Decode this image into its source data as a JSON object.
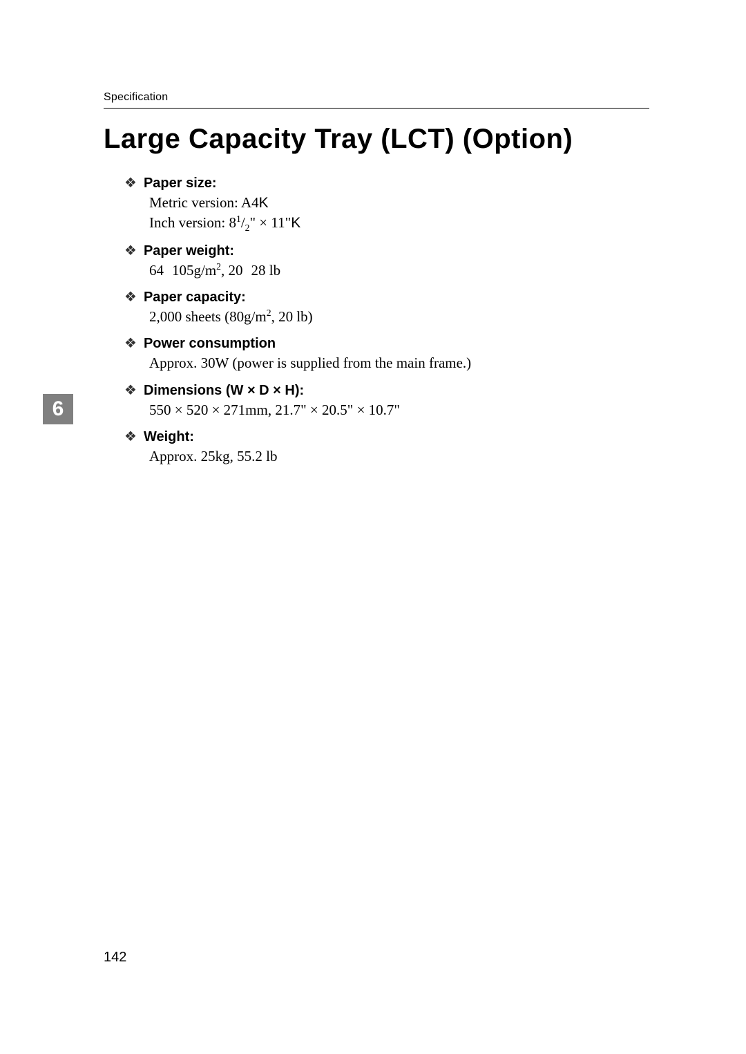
{
  "header": {
    "running_head": "Specification"
  },
  "title": "Large Capacity Tray (LCT) (Option)",
  "section_tab": "6",
  "page_number": "142",
  "bullet_glyph": "❖",
  "specs": {
    "paper_size": {
      "label": "Paper size:",
      "line1_prefix": "Metric version: A4",
      "line1_k": "K",
      "line2_prefix": "Inch version: 8",
      "line2_sup": "1",
      "line2_slash": "/",
      "line2_sub": "2",
      "line2_mid": "\" × 11\"",
      "line2_k": "K"
    },
    "paper_weight": {
      "label": "Paper weight:",
      "part1": "64",
      "dash1": " ",
      "part2": "105g/m",
      "sup": "2",
      "part3": ", 20",
      "dash2": " ",
      "part4": "28 lb"
    },
    "paper_capacity": {
      "label": "Paper capacity:",
      "part1": "2,000 sheets (80g/m",
      "sup": "2",
      "part2": ", 20 lb)"
    },
    "power": {
      "label": "Power consumption",
      "body": "Approx. 30W (power is supplied from the main frame.)"
    },
    "dimensions": {
      "label": "Dimensions (W × D × H):",
      "body": "550 × 520 × 271mm, 21.7\" × 20.5\" × 10.7\""
    },
    "weight": {
      "label": "Weight:",
      "body": "Approx. 25kg, 55.2 lb"
    }
  }
}
